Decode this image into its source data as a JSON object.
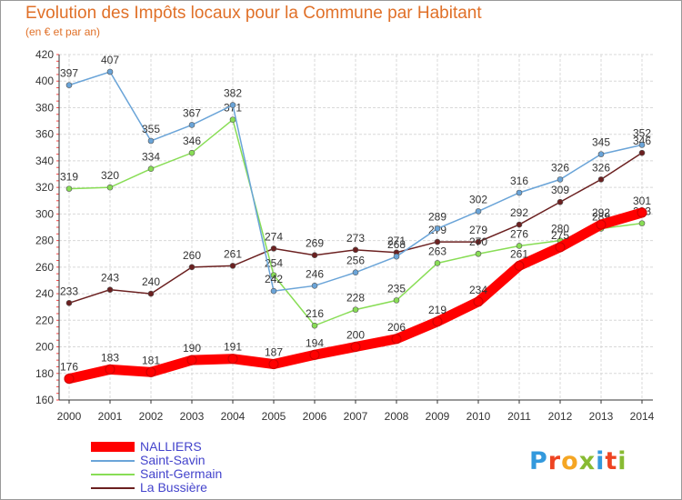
{
  "header": {
    "title": "Evolution des Impôts locaux pour la Commune par Habitant",
    "subtitle": "(en € et par an)"
  },
  "chart_data": {
    "type": "line",
    "title": "Evolution des Impôts locaux pour la Commune par Habitant",
    "subtitle": "(en € et par an)",
    "xlabel": "",
    "ylabel": "",
    "ylim": [
      160,
      420
    ],
    "yticks": [
      160,
      180,
      200,
      220,
      240,
      260,
      280,
      300,
      320,
      340,
      360,
      380,
      400,
      420
    ],
    "grid": true,
    "legend_position": "bottom-left",
    "x": [
      2000,
      2001,
      2002,
      2003,
      2004,
      2005,
      2006,
      2007,
      2008,
      2009,
      2010,
      2011,
      2012,
      2013,
      2014
    ],
    "series": [
      {
        "name": "La Bussière",
        "color": "#6b2020",
        "values": [
          233,
          243,
          240,
          260,
          261,
          274,
          269,
          273,
          271,
          279,
          279,
          292,
          309,
          326,
          346
        ]
      },
      {
        "name": "Saint-Germain",
        "color": "#88dd55",
        "values": [
          319,
          320,
          334,
          346,
          371,
          254,
          216,
          228,
          235,
          263,
          270,
          276,
          280,
          289,
          293
        ]
      },
      {
        "name": "Saint-Savin",
        "color": "#6aa4d8",
        "values": [
          397,
          407,
          355,
          367,
          382,
          242,
          246,
          256,
          268,
          289,
          302,
          316,
          326,
          345,
          352
        ]
      },
      {
        "name": "NALLIERS",
        "color": "#ff0000",
        "values": [
          176,
          183,
          181,
          190,
          191,
          187,
          194,
          200,
          206,
          219,
          234,
          261,
          275,
          292,
          301
        ]
      }
    ],
    "legend_order": [
      "NALLIERS",
      "Saint-Savin",
      "Saint-Germain",
      "La Bussière"
    ]
  },
  "logo": {
    "text": "Proxiti",
    "colors": [
      "#3399dd",
      "#ee4422",
      "#f5a623",
      "#88bb33",
      "#3399dd",
      "#ee4422",
      "#88bb33"
    ]
  }
}
